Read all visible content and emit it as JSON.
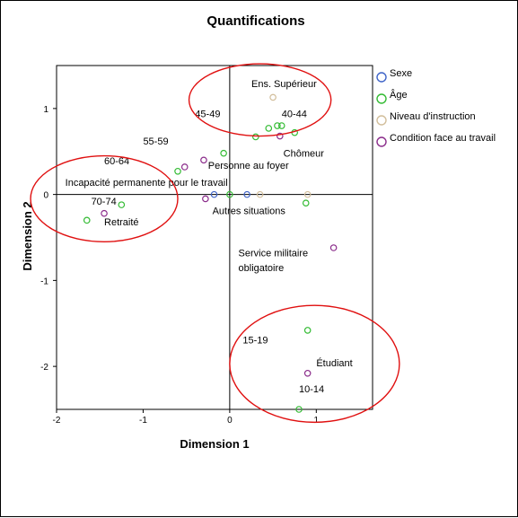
{
  "chart_data": {
    "type": "scatter",
    "title": "Quantifications",
    "xlabel": "Dimension 1",
    "ylabel": "Dimension 2",
    "xlim": [
      -2,
      1.65
    ],
    "ylim": [
      -2.5,
      1.5
    ],
    "xticks": [
      -2,
      -1,
      0,
      1
    ],
    "yticks": [
      -2,
      -1,
      0,
      1
    ],
    "xtick_labels": [
      "-2",
      "-1",
      "0",
      "1"
    ],
    "ytick_labels": [
      "-2",
      "-1",
      "0",
      "1"
    ],
    "reference_lines": {
      "x": 0,
      "y": 0
    },
    "legend_position": "right",
    "series": [
      {
        "name": "Sexe",
        "color": "#3f64c8",
        "points": [
          [
            -0.18,
            0.0
          ],
          [
            0.2,
            0.0
          ]
        ]
      },
      {
        "name": "Âge",
        "color": "#33bb33",
        "points": [
          [
            0.9,
            -1.58
          ],
          [
            0.8,
            -2.5
          ],
          [
            -1.65,
            -0.3
          ],
          [
            -1.25,
            -0.12
          ],
          [
            -0.6,
            0.27
          ],
          [
            -0.07,
            0.48
          ],
          [
            0.3,
            0.67
          ],
          [
            0.45,
            0.77
          ],
          [
            0.55,
            0.8
          ],
          [
            0.6,
            0.8
          ],
          [
            0.75,
            0.72
          ],
          [
            0.88,
            -0.1
          ],
          [
            0.0,
            0.0
          ]
        ]
      },
      {
        "name": "Niveau d'instruction",
        "color": "#d2be9b",
        "points": [
          [
            0.5,
            1.13
          ],
          [
            0.35,
            0.0
          ],
          [
            0.9,
            0.0
          ]
        ]
      },
      {
        "name": "Condition face au travail",
        "color": "#8b2d8b",
        "points": [
          [
            0.9,
            -2.08
          ],
          [
            1.2,
            -0.62
          ],
          [
            -1.45,
            -0.22
          ],
          [
            -0.52,
            0.32
          ],
          [
            -0.3,
            0.4
          ],
          [
            0.58,
            0.68
          ],
          [
            -0.28,
            -0.05
          ]
        ]
      }
    ],
    "annotations": [
      {
        "text": "Ens. Supérieur",
        "x": 0.25,
        "y": 1.25
      },
      {
        "text": "45-49",
        "x": -0.4,
        "y": 0.9
      },
      {
        "text": "40-44",
        "x": 0.6,
        "y": 0.9
      },
      {
        "text": "55-59",
        "x": -1.0,
        "y": 0.58
      },
      {
        "text": "Chômeur",
        "x": 0.62,
        "y": 0.44
      },
      {
        "text": "60-64",
        "x": -1.45,
        "y": 0.35
      },
      {
        "text": "Personne au foyer",
        "x": -0.25,
        "y": 0.3
      },
      {
        "text": "Incapacité permanente pour le travail",
        "x": -1.9,
        "y": 0.1
      },
      {
        "text": "70-74",
        "x": -1.6,
        "y": -0.12
      },
      {
        "text": "Autres situations",
        "x": -0.2,
        "y": -0.23
      },
      {
        "text": "Retraité",
        "x": -1.45,
        "y": -0.36
      },
      {
        "text": "Service militaire",
        "x": 0.1,
        "y": -0.72
      },
      {
        "text": "obligatoire",
        "x": 0.1,
        "y": -0.89
      },
      {
        "text": "15-19",
        "x": 0.15,
        "y": -1.73
      },
      {
        "text": "Étudiant",
        "x": 1.0,
        "y": -2.0
      },
      {
        "text": "10-14",
        "x": 0.8,
        "y": -2.3
      }
    ],
    "highlight_ellipses": [
      {
        "cx": 0.35,
        "cy": 1.1,
        "rx": 0.82,
        "ry": 0.42
      },
      {
        "cx": -1.45,
        "cy": -0.05,
        "rx": 0.85,
        "ry": 0.5
      },
      {
        "cx": 0.98,
        "cy": -1.97,
        "rx": 0.98,
        "ry": 0.68
      }
    ]
  }
}
